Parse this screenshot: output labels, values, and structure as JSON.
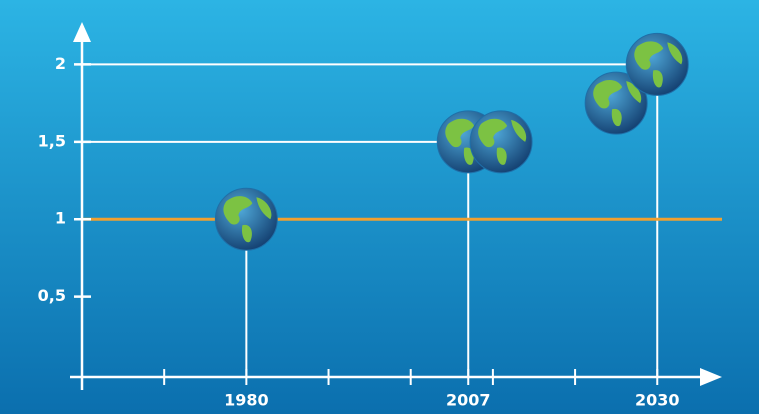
{
  "chart_data": {
    "type": "scatter",
    "x": [
      1980,
      2007,
      2011,
      2025,
      2030
    ],
    "values": [
      1,
      1.5,
      1.5,
      1.75,
      2
    ],
    "xlim": [
      1960,
      2038
    ],
    "ylim": [
      0,
      2.3
    ],
    "xticks": [
      1980,
      2007,
      2030
    ],
    "minor_xticks": [
      1970,
      1990,
      2000,
      2010,
      2020
    ],
    "yticks": [
      {
        "value": 0.5,
        "label": "0,5"
      },
      1,
      {
        "value": 1.5,
        "label": "1,5"
      },
      2
    ],
    "reference_line": {
      "value": 1,
      "color": "#f0a030"
    },
    "color": "#1f6fa8"
  }
}
